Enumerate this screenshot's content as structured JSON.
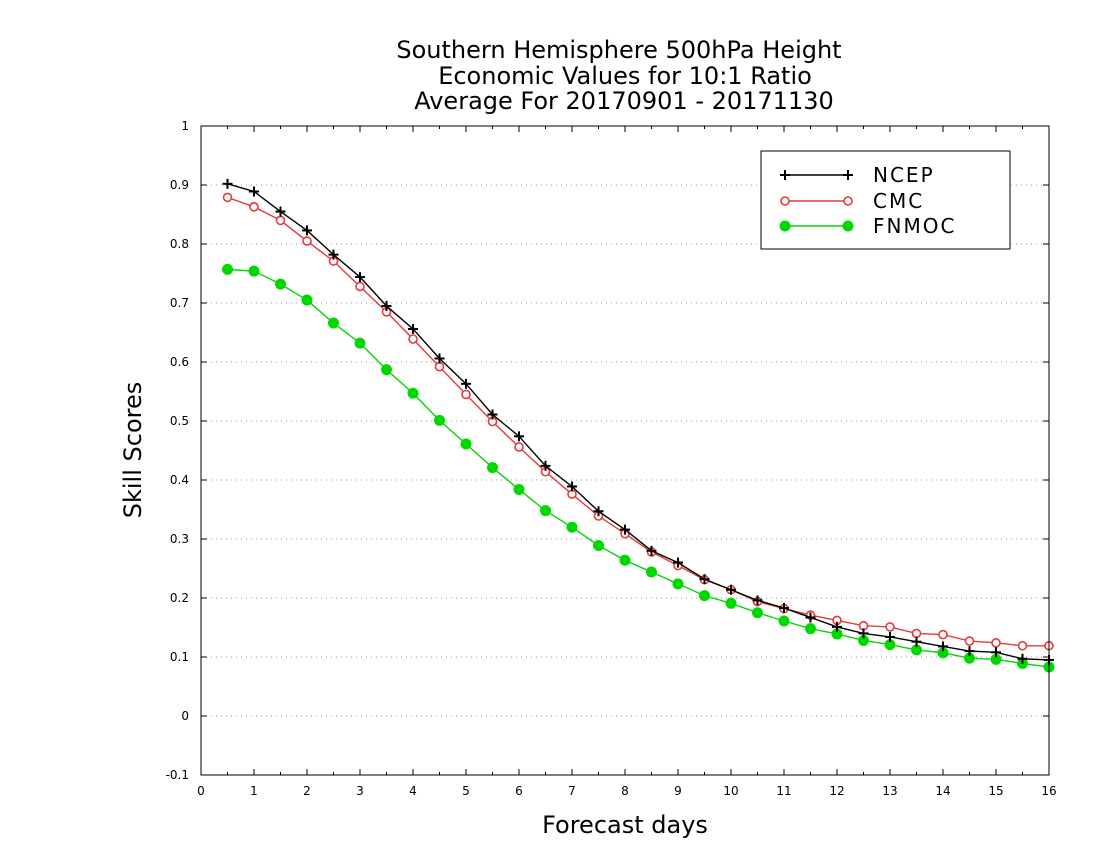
{
  "chart_data": {
    "type": "line",
    "title_lines": [
      "Southern Hemisphere 500hPa Height",
      "Economic Values for 10:1 Ratio",
      "Average For 20170901 - 20171130"
    ],
    "xlabel": "Forecast days",
    "ylabel": "Skill Scores",
    "xlim": [
      0,
      16
    ],
    "ylim": [
      -0.1,
      1
    ],
    "x_ticks": [
      0,
      1,
      2,
      3,
      4,
      5,
      6,
      7,
      8,
      9,
      10,
      11,
      12,
      13,
      14,
      15,
      16
    ],
    "x_tick_labels": [
      "0",
      "1",
      "2",
      "3",
      "4",
      "5",
      "6",
      "7",
      "8",
      "9",
      "10",
      "11",
      "12",
      "13",
      "14",
      "15",
      "16"
    ],
    "y_ticks": [
      -0.1,
      0,
      0.1,
      0.2,
      0.3,
      0.4,
      0.5,
      0.6,
      0.7,
      0.8,
      0.9,
      1
    ],
    "y_tick_labels": [
      "-0.1",
      "0",
      "0.1",
      "0.2",
      "0.3",
      "0.4",
      "0.5",
      "0.6",
      "0.7",
      "0.8",
      "0.9",
      "1"
    ],
    "grid": "horizontal dotted",
    "legend_position": "top-right",
    "x": [
      0.5,
      1,
      1.5,
      2,
      2.5,
      3,
      3.5,
      4,
      4.5,
      5,
      5.5,
      6,
      6.5,
      7,
      7.5,
      8,
      8.5,
      9,
      9.5,
      10,
      10.5,
      11,
      11.5,
      12,
      12.5,
      13,
      13.5,
      14,
      14.5,
      15,
      15.5,
      16
    ],
    "series": [
      {
        "name": "NCEP",
        "color": "#000000",
        "marker": "plus",
        "values": [
          0.902,
          0.889,
          0.855,
          0.823,
          0.782,
          0.744,
          0.695,
          0.656,
          0.606,
          0.563,
          0.511,
          0.474,
          0.424,
          0.389,
          0.347,
          0.316,
          0.28,
          0.26,
          0.232,
          0.214,
          0.196,
          0.183,
          0.167,
          0.151,
          0.14,
          0.134,
          0.126,
          0.118,
          0.11,
          0.108,
          0.097,
          0.095
        ]
      },
      {
        "name": "CMC",
        "color": "#e8383b",
        "marker": "open-circle",
        "values": [
          0.879,
          0.863,
          0.84,
          0.805,
          0.771,
          0.728,
          0.685,
          0.639,
          0.592,
          0.545,
          0.499,
          0.456,
          0.414,
          0.376,
          0.339,
          0.309,
          0.278,
          0.255,
          0.231,
          0.214,
          0.194,
          0.182,
          0.171,
          0.162,
          0.153,
          0.151,
          0.14,
          0.138,
          0.127,
          0.124,
          0.119,
          0.119
        ]
      },
      {
        "name": "FNMOC",
        "color": "#00d800",
        "marker": "filled-circle",
        "values": [
          0.757,
          0.754,
          0.732,
          0.705,
          0.666,
          0.632,
          0.587,
          0.547,
          0.501,
          0.461,
          0.421,
          0.384,
          0.348,
          0.32,
          0.289,
          0.264,
          0.244,
          0.224,
          0.204,
          0.191,
          0.175,
          0.161,
          0.148,
          0.139,
          0.128,
          0.121,
          0.112,
          0.107,
          0.098,
          0.096,
          0.089,
          0.083
        ]
      }
    ]
  }
}
